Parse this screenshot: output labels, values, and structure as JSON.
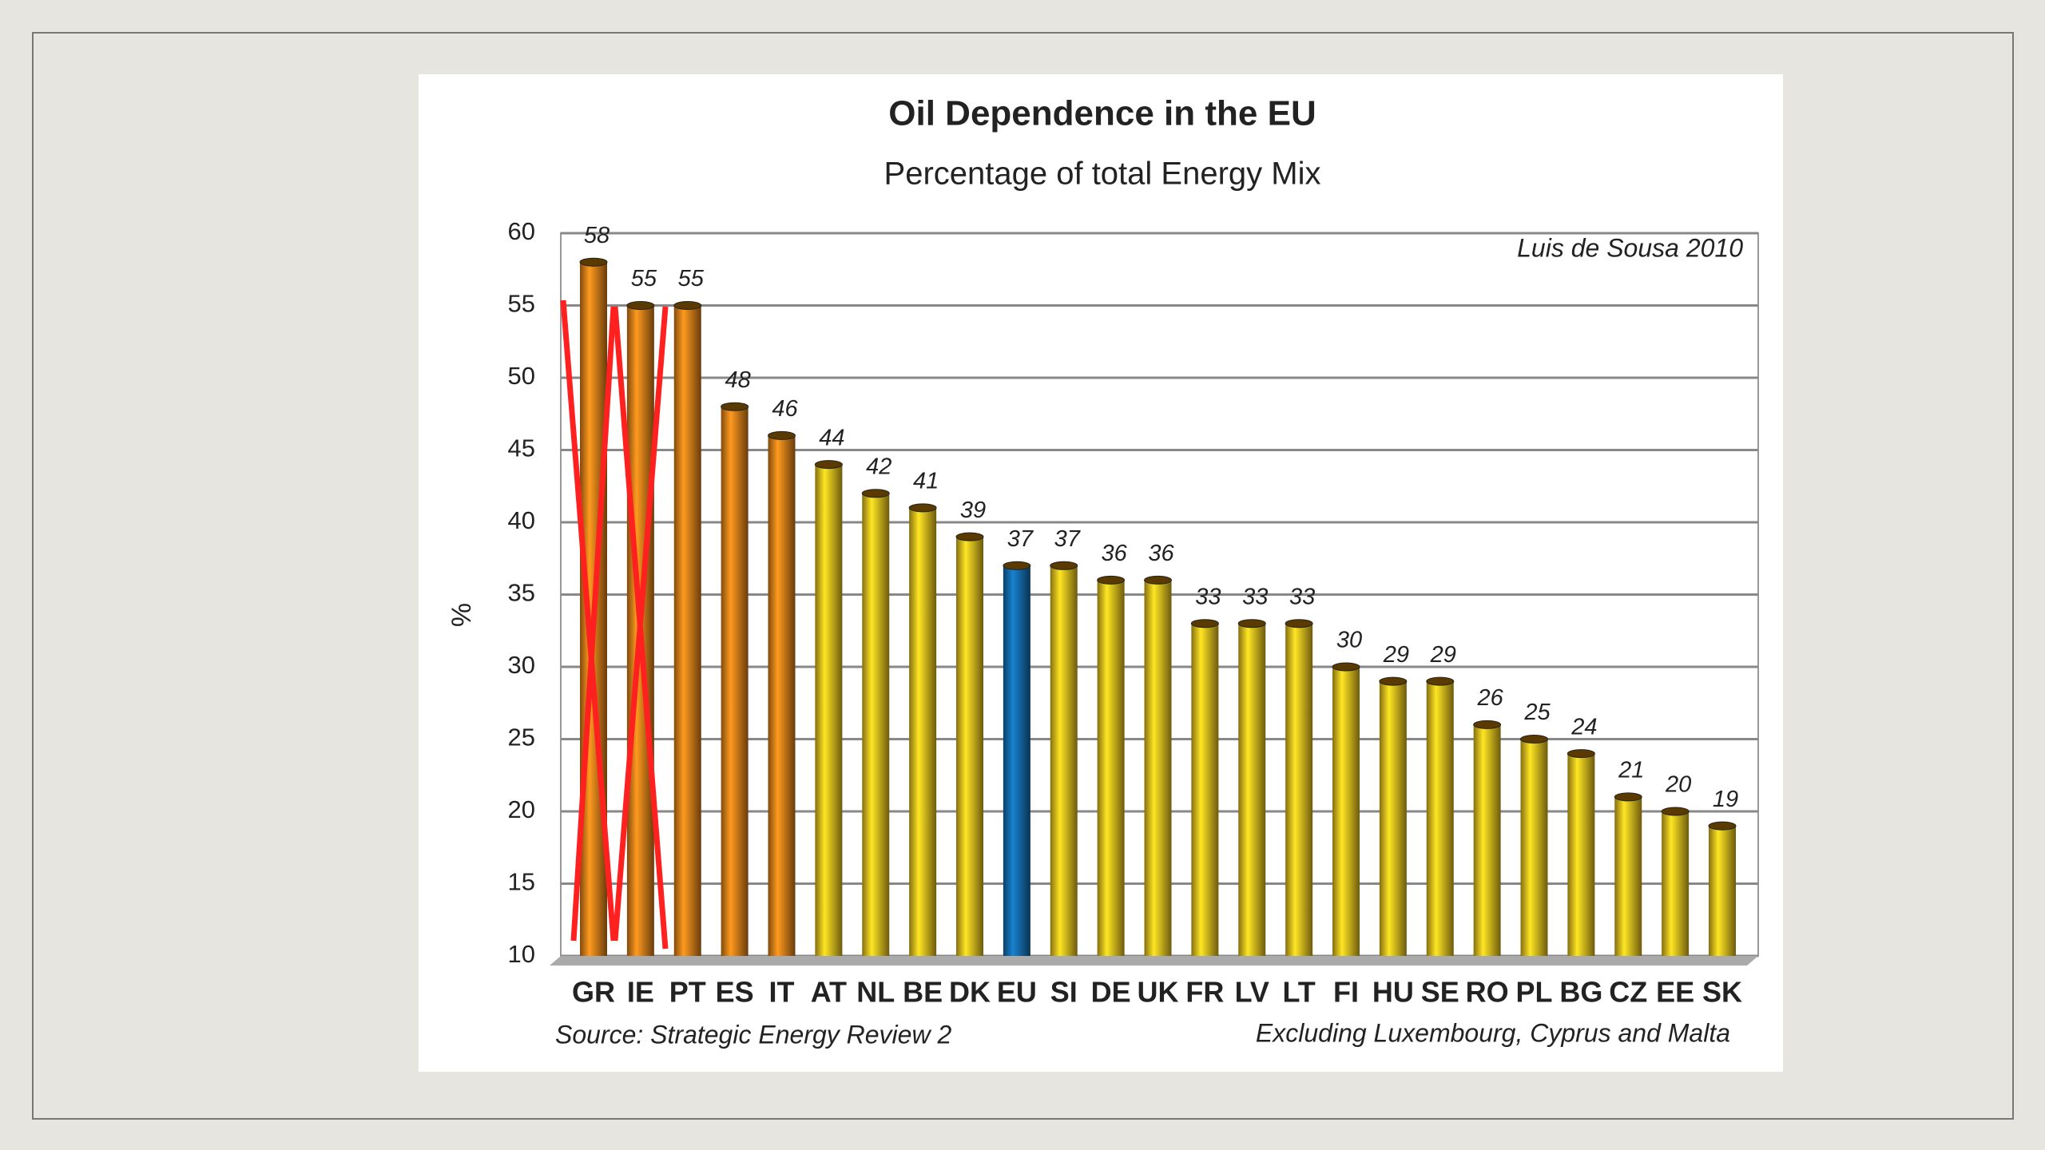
{
  "chart_data": {
    "type": "bar",
    "title": "Oil Dependence in the EU",
    "subtitle": "Percentage of total Energy Mix",
    "y_label": "%",
    "annotation": "Luis de Sousa  2010",
    "source": "Source: Strategic Energy Review 2",
    "note": "Excluding Luxembourg, Cyprus and Malta",
    "categories": [
      "GR",
      "IE",
      "PT",
      "ES",
      "IT",
      "AT",
      "NL",
      "BE",
      "DK",
      "EU",
      "SI",
      "DE",
      "UK",
      "FR",
      "LV",
      "LT",
      "FI",
      "HU",
      "SE",
      "RO",
      "PL",
      "BG",
      "CZ",
      "EE",
      "SK"
    ],
    "values": [
      58,
      55,
      55,
      48,
      46,
      44,
      42,
      41,
      39,
      37,
      37,
      36,
      36,
      33,
      33,
      33,
      30,
      29,
      29,
      26,
      25,
      24,
      21,
      20,
      19
    ],
    "colors": [
      "#e8861a",
      "#e8861a",
      "#e8861a",
      "#e8861a",
      "#e8861a",
      "#f2c81e",
      "#f2c81e",
      "#f2c81e",
      "#f2c81e",
      "#1572b6",
      "#f2c81e",
      "#f2c81e",
      "#f2c81e",
      "#f2c81e",
      "#f2c81e",
      "#f2c81e",
      "#f2c81e",
      "#f2c81e",
      "#f2c81e",
      "#f2c81e",
      "#f2c81e",
      "#f2c81e",
      "#f2c81e",
      "#f2c81e",
      "#f2c81e"
    ],
    "ylim": [
      10,
      60
    ],
    "yticks": [
      10,
      15,
      20,
      25,
      30,
      35,
      40,
      45,
      50,
      55,
      60
    ],
    "grid": true
  }
}
